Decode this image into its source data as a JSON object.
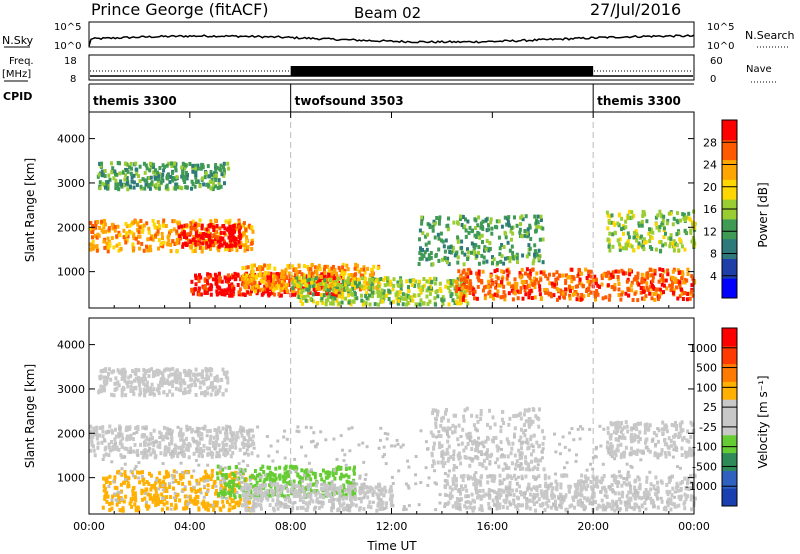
{
  "header": {
    "station": "Prince George (fitACF)",
    "beam": "Beam 02",
    "date": "27/Jul/2016"
  },
  "top_panels": {
    "nsky_label": "N.Sky",
    "nsky_ticks": [
      "10^5",
      "10^0"
    ],
    "nsearch_label": "N.Search",
    "nsearch_ticks": [
      "10^5",
      "10^0"
    ],
    "freq_label": "Freq.",
    "freq_unit": "[MHz]",
    "freq_ticks": [
      "18",
      "8"
    ],
    "nave_label": "Nave",
    "nave_ticks": [
      "60",
      "0"
    ],
    "cpid_label": "CPID",
    "cpid_segments": [
      {
        "name": "themis 3300",
        "start": 0,
        "end": 8
      },
      {
        "name": "twofsound 3503",
        "start": 8,
        "end": 20
      },
      {
        "name": "themis 3300",
        "start": 20,
        "end": 24
      }
    ]
  },
  "colors": {
    "power_scale": [
      "#0000ff",
      "#1f3fa8",
      "#2e7a7a",
      "#3f9a55",
      "#9acd32",
      "#ffd700",
      "#ffa500",
      "#ff5a00",
      "#ff0000"
    ],
    "velocity_scale": [
      "#1a3fb0",
      "#3060c0",
      "#2e8b57",
      "#66cc33",
      "#c8c8c8",
      "#c8c8c8",
      "#ffb000",
      "#ff7a00",
      "#ff3a00",
      "#ff0000"
    ],
    "ground_scatter": "#c0c0c0"
  },
  "power_colorbar": {
    "label": "Power [dB]",
    "ticks": [
      "28",
      "24",
      "20",
      "16",
      "12",
      "8",
      "4"
    ]
  },
  "velocity_colorbar": {
    "label": "Velocity [m s⁻¹]",
    "ticks": [
      "1000",
      "500",
      "100",
      "25",
      "-25",
      "-100",
      "-500",
      "-1000"
    ]
  },
  "chart_data": [
    {
      "type": "heatmap",
      "panel": "power",
      "xlabel": "",
      "ylabel": "Slant Range [km]",
      "xlim": [
        0,
        24
      ],
      "ylim": [
        180,
        4600
      ],
      "yticks": [
        "1000",
        "2000",
        "3000",
        "4000"
      ],
      "xticks": [
        "00:00",
        "04:00",
        "08:00",
        "12:00",
        "16:00",
        "20:00",
        "00:00"
      ],
      "grid_vertical_at": [
        8,
        20
      ],
      "scatter_regions": [
        {
          "t0": 0.3,
          "t1": 5.5,
          "r0": 2900,
          "r1": 3500,
          "level": 3
        },
        {
          "t0": 0.0,
          "t1": 6.5,
          "r0": 1500,
          "r1": 2200,
          "level": 6
        },
        {
          "t0": 3.5,
          "t1": 6.0,
          "r0": 1600,
          "r1": 2100,
          "level": 8
        },
        {
          "t0": 4.0,
          "t1": 10.0,
          "r0": 500,
          "r1": 1000,
          "level": 8
        },
        {
          "t0": 6.0,
          "t1": 11.5,
          "r0": 600,
          "r1": 1200,
          "level": 6
        },
        {
          "t0": 8.0,
          "t1": 15.0,
          "r0": 300,
          "r1": 900,
          "level": 4
        },
        {
          "t0": 13.0,
          "t1": 18.0,
          "r0": 1200,
          "r1": 2300,
          "level": 3
        },
        {
          "t0": 14.5,
          "t1": 24.0,
          "r0": 400,
          "r1": 1100,
          "level": 7
        },
        {
          "t0": 20.5,
          "t1": 24.0,
          "r0": 1500,
          "r1": 2400,
          "level": 4
        }
      ]
    },
    {
      "type": "heatmap",
      "panel": "velocity",
      "xlabel": "Time UT",
      "ylabel": "Slant Range [km]",
      "xlim": [
        0,
        24
      ],
      "ylim": [
        180,
        4600
      ],
      "yticks": [
        "1000",
        "2000",
        "3000",
        "4000"
      ],
      "xticks": [
        "00:00",
        "04:00",
        "08:00",
        "12:00",
        "16:00",
        "20:00",
        "00:00"
      ],
      "grid_vertical_at": [
        8,
        20
      ],
      "scatter_regions": [
        {
          "t0": 0.3,
          "t1": 5.5,
          "r0": 2900,
          "r1": 3500,
          "level": 4
        },
        {
          "t0": 0.0,
          "t1": 6.5,
          "r0": 1500,
          "r1": 2200,
          "level": 4
        },
        {
          "t0": 0.5,
          "t1": 6.5,
          "r0": 300,
          "r1": 1200,
          "level": 6
        },
        {
          "t0": 5.0,
          "t1": 10.5,
          "r0": 600,
          "r1": 1300,
          "level": 3
        },
        {
          "t0": 6.0,
          "t1": 12.0,
          "r0": 300,
          "r1": 900,
          "level": 4
        },
        {
          "t0": 13.5,
          "t1": 18.0,
          "r0": 1200,
          "r1": 2600,
          "level": 4
        },
        {
          "t0": 14.0,
          "t1": 24.0,
          "r0": 300,
          "r1": 1100,
          "level": 4
        },
        {
          "t0": 20.5,
          "t1": 24.0,
          "r0": 1500,
          "r1": 2300,
          "level": 4
        }
      ]
    }
  ]
}
